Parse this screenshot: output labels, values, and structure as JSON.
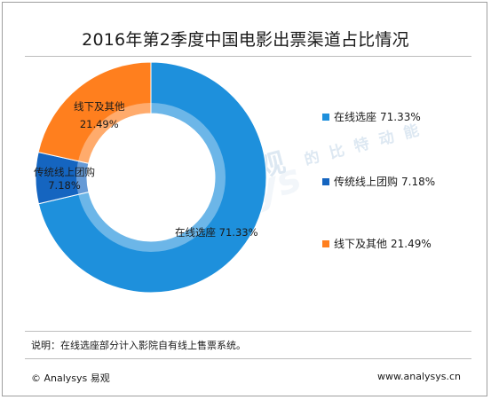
{
  "chart_data": {
    "type": "pie",
    "style": "donut",
    "title": "2016年第2季度中国电影出票渠道占比情况",
    "slices": [
      {
        "name": "在线选座",
        "value": 71.33,
        "value_label": "71.33%",
        "color": "#1e90dc"
      },
      {
        "name": "传统线上团购",
        "value": 7.18,
        "value_label": "7.18%",
        "color": "#1565c0"
      },
      {
        "name": "线下及其他",
        "value": 21.49,
        "value_label": "21.49%",
        "color": "#ff7f1e"
      }
    ],
    "legend_position": "right"
  },
  "watermark": {
    "brand": "易观",
    "tagline": "的 比 特 动 能",
    "latin": "analysys"
  },
  "note": "说明：在线选座部分计入影院自有线上售票系统。",
  "footer": {
    "copyright": "© Analysys 易观",
    "website": "www.analysys.cn"
  }
}
